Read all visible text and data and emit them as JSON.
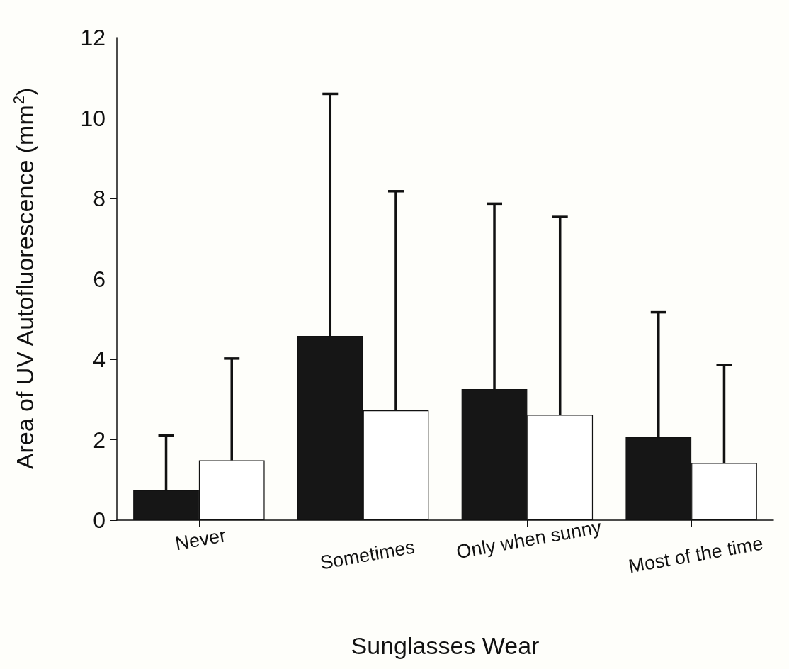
{
  "chart_data": {
    "type": "bar",
    "xlabel": "Sunglasses Wear",
    "ylabel": "Area of UV Autofluorescence (mm$^{2}$)",
    "categories": [
      "Never",
      "Sometimes",
      "Only when sunny",
      "Most of the time"
    ],
    "series": [
      {
        "color": "#161616",
        "values": [
          0.75,
          4.58,
          3.26,
          2.06
        ],
        "errors": [
          [
            0.75,
            2.11
          ],
          [
            4.58,
            10.6
          ],
          [
            3.26,
            7.87
          ],
          [
            2.06,
            5.17
          ]
        ]
      },
      {
        "color": "#ffffff",
        "values": [
          1.49,
          2.73,
          2.62,
          1.42
        ],
        "errors": [
          [
            1.49,
            4.02
          ],
          [
            2.73,
            8.18
          ],
          [
            2.62,
            7.54
          ],
          [
            1.42,
            3.86
          ]
        ]
      }
    ],
    "ylim": [
      0,
      12
    ],
    "yticks": [
      0,
      2,
      4,
      6,
      8,
      10,
      12
    ],
    "grid": false
  }
}
